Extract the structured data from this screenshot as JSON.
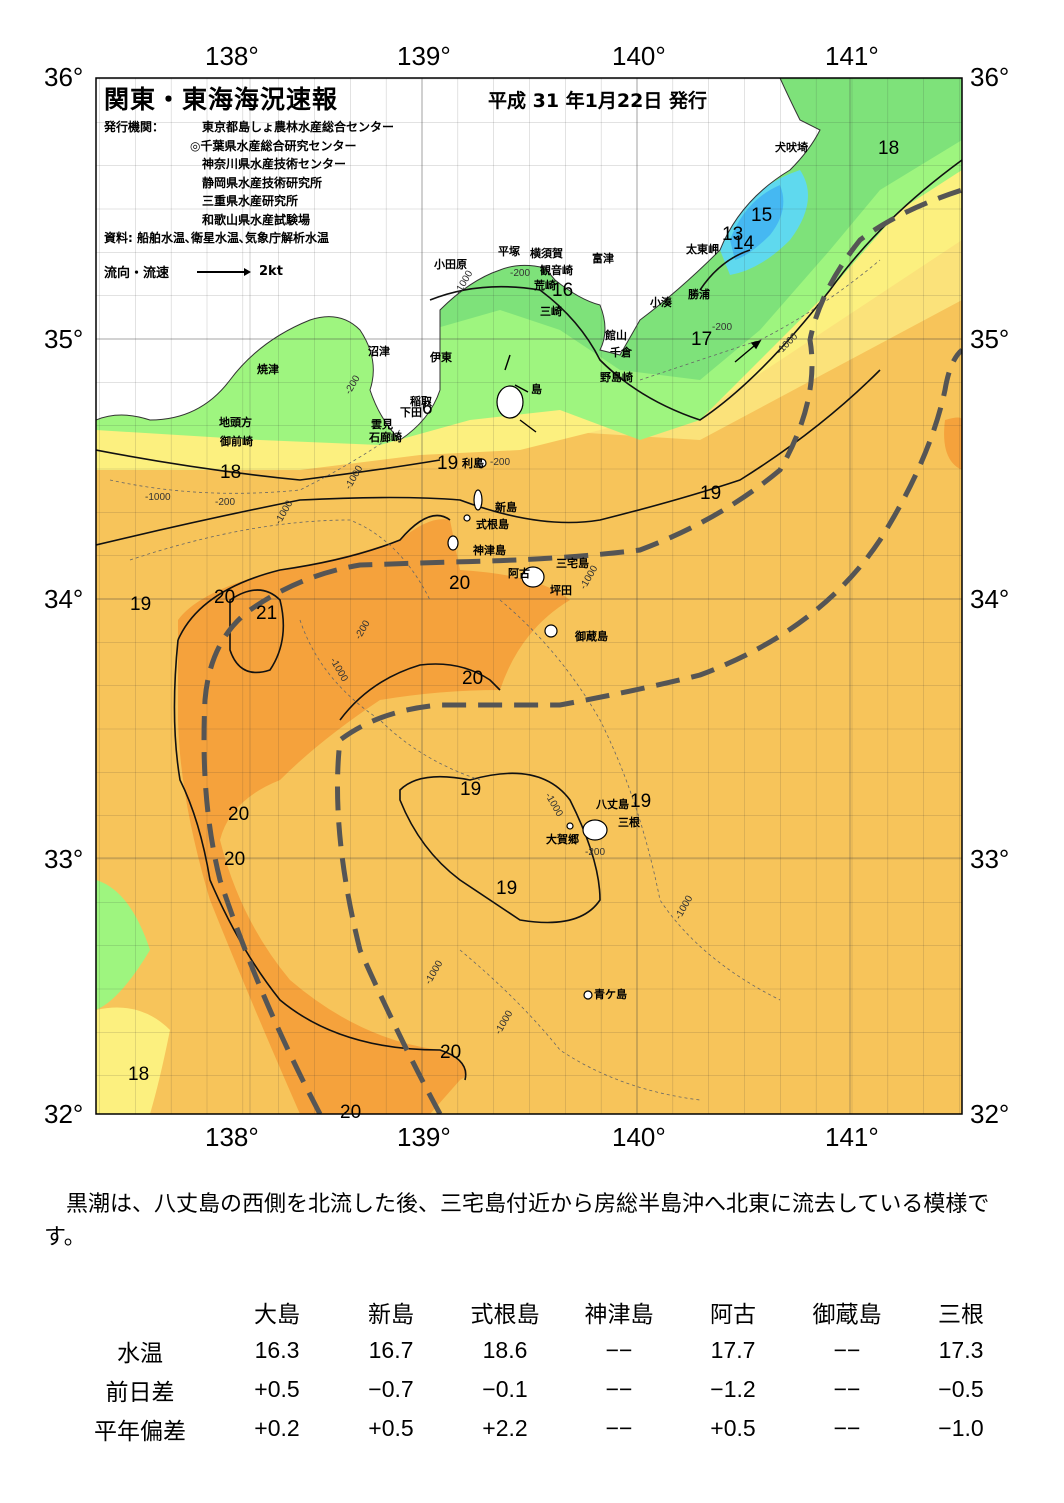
{
  "header": {
    "title": "関東・東海海況速報",
    "date": "平成 31 年1月22日 発行",
    "issuer_label": "発行機関：",
    "issuers": [
      "東京都島しょ農林水産総合センター",
      "◎千葉県水産総合研究センター",
      "神奈川県水産技術センター",
      "静岡県水産技術研究所",
      "三重県水産研究所",
      "和歌山県水産試験場"
    ],
    "source": "資料: 船舶水温､衛星水温､気象庁解析水温",
    "legend_label": "流向・流速",
    "legend_speed": "2kt"
  },
  "axes": {
    "lon_labels": [
      "138°",
      "139°",
      "140°",
      "141°"
    ],
    "lat_labels": [
      "36°",
      "35°",
      "34°",
      "33°",
      "32°"
    ]
  },
  "place_names": {
    "inubozaki": "犬吠埼",
    "taitomisaki": "太東岬",
    "katsuura": "勝浦",
    "kominato": "小湊",
    "tateyama": "館山",
    "chikura": "千倉",
    "nojimazaki": "野島崎",
    "futtsu": "富津",
    "kannonzaki": "観音崎",
    "arasaki": "荒崎",
    "misaki": "三崎",
    "yokosuka": "横須賀",
    "hiratsuka": "平塚",
    "odawara": "小田原",
    "ito": "伊東",
    "numazu": "沼津",
    "yaizu": "焼津",
    "jitougata": "地頭方",
    "omaezaki": "御前崎",
    "inatori": "稲取",
    "shimoda": "下田",
    "kumomi": "雲見",
    "irozaki": "石廊崎",
    "oshima": "島",
    "toshima": "利島",
    "niijima": "新島",
    "shikinejima": "式根島",
    "kozushima": "神津島",
    "miyakejima": "三宅島",
    "ako": "阿古",
    "tsubota": "坪田",
    "mikurajima": "御蔵島",
    "hachijojima": "八丈島",
    "mitsune": "三根",
    "okago": "大賀郷",
    "aogashima": "青ケ島"
  },
  "isotherm_labels": [
    "18",
    "13",
    "14",
    "15",
    "16",
    "17",
    "6",
    "19",
    "19",
    "20",
    "21",
    "20",
    "20",
    "20",
    "20",
    "19",
    "19",
    "19",
    "20",
    "20",
    "18",
    "20"
  ],
  "depth_label": "-200",
  "depth_label_deep": "-1000",
  "comment": "黒潮は、八丈島の西側を北流した後、三宅島付近から房総半島沖へ北東に流去している模様です。",
  "table": {
    "columns": [
      "大島",
      "新島",
      "式根島",
      "神津島",
      "阿古",
      "御蔵島",
      "三根"
    ],
    "rows": [
      {
        "label": "水温",
        "values": [
          "16.3",
          "16.7",
          "18.6",
          "−−",
          "17.7",
          "−−",
          "17.3"
        ]
      },
      {
        "label": "前日差",
        "values": [
          "+0.5",
          "−0.7",
          "−0.1",
          "−−",
          "−1.2",
          "−−",
          "−0.5"
        ]
      },
      {
        "label": "平年偏差",
        "values": [
          "+0.2",
          "+0.5",
          "+2.2",
          "−−",
          "+0.5",
          "−−",
          "−1.0"
        ]
      }
    ]
  },
  "colors": {
    "warm_core": "#f5a23c",
    "warm": "#f7c45a",
    "mid": "#fbe27a",
    "cool_yellow": "#fcf07f",
    "cool_green": "#9ef57f",
    "green": "#7ee27a",
    "cold_cyan": "#5fd9ee",
    "cold_blue": "#45b8f2",
    "kuroshio_axis": "#555555"
  }
}
